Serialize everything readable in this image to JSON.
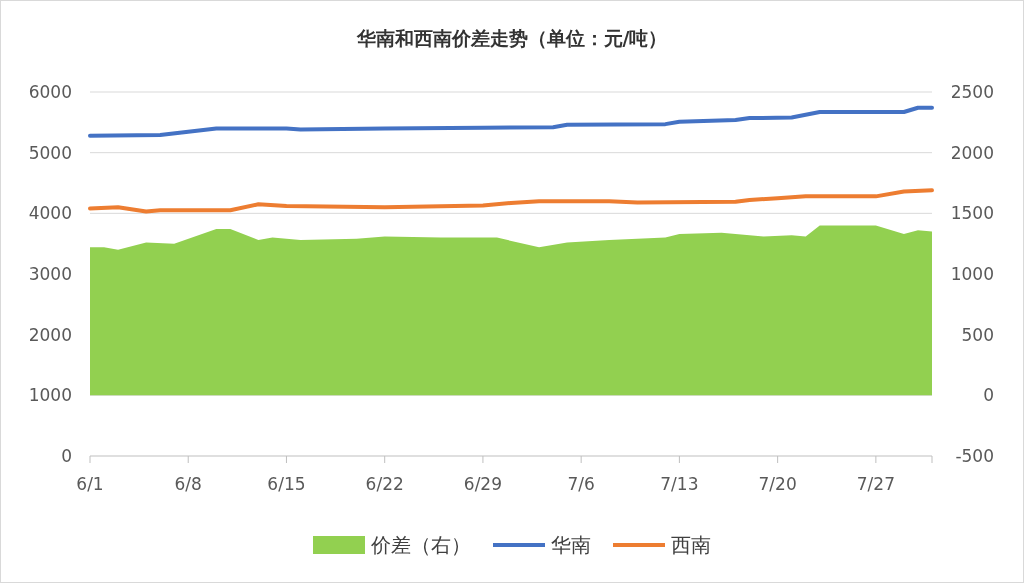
{
  "chart_data": {
    "type": "line",
    "title": "华南和西南价差走势（单位：元/吨）",
    "series": [
      {
        "name": "价差（右）",
        "type": "area",
        "axis": "y2",
        "color": "#92d050",
        "x": [
          "--06-01",
          "--06-02",
          "--06-03",
          "--06-05",
          "--06-07",
          "--06-10",
          "--06-11",
          "--06-13",
          "--06-14",
          "--06-16",
          "--06-20",
          "--06-22",
          "--06-26",
          "--06-30",
          "--07-03",
          "--07-05",
          "--07-08",
          "--07-12",
          "--07-13",
          "--07-16",
          "--07-19",
          "--07-21",
          "--07-22",
          "--07-23",
          "--07-27",
          "--07-29",
          "--07-30",
          "--07-31"
        ],
        "values": [
          1220,
          1220,
          1200,
          1260,
          1250,
          1370,
          1370,
          1280,
          1300,
          1280,
          1290,
          1310,
          1300,
          1300,
          1220,
          1260,
          1280,
          1300,
          1330,
          1340,
          1310,
          1320,
          1310,
          1400,
          1400,
          1330,
          1360,
          1350
        ]
      },
      {
        "name": "华南",
        "color": "#4472c4",
        "x": [
          "--06-01",
          "--06-06",
          "--06-10",
          "--06-15",
          "--06-16",
          "--06-22",
          "--06-29",
          "--07-04",
          "--07-05",
          "--07-12",
          "--07-13",
          "--07-17",
          "--07-18",
          "--07-21",
          "--07-23",
          "--07-29",
          "--07-30",
          "--07-31"
        ],
        "values": [
          5280,
          5290,
          5400,
          5400,
          5380,
          5400,
          5410,
          5420,
          5460,
          5470,
          5510,
          5540,
          5570,
          5580,
          5670,
          5670,
          5740,
          5740
        ]
      },
      {
        "name": "西南",
        "color": "#ed7d31",
        "x": [
          "--06-01",
          "--06-03",
          "--06-05",
          "--06-06",
          "--06-11",
          "--06-13",
          "--06-15",
          "--06-22",
          "--06-29",
          "--07-01",
          "--07-03",
          "--07-08",
          "--07-10",
          "--07-17",
          "--07-18",
          "--07-20",
          "--07-22",
          "--07-27",
          "--07-29",
          "--07-31"
        ],
        "values": [
          4080,
          4100,
          4030,
          4050,
          4050,
          4150,
          4120,
          4100,
          4130,
          4170,
          4200,
          4200,
          4180,
          4190,
          4220,
          4250,
          4280,
          4280,
          4360,
          4380
        ]
      }
    ],
    "xlim": [
      "--06-01",
      "--07-31"
    ],
    "xticks": [
      {
        "value": "--06-01",
        "label": "6/1"
      },
      {
        "value": "--06-08",
        "label": "6/8"
      },
      {
        "value": "--06-15",
        "label": "6/15"
      },
      {
        "value": "--06-22",
        "label": "6/22"
      },
      {
        "value": "--06-29",
        "label": "6/29"
      },
      {
        "value": "--07-06",
        "label": "7/6"
      },
      {
        "value": "--07-13",
        "label": "7/13"
      },
      {
        "value": "--07-20",
        "label": "7/20"
      },
      {
        "value": "--07-27",
        "label": "7/27"
      }
    ],
    "ylim": [
      0,
      6000
    ],
    "yticks": [
      0,
      1000,
      2000,
      3000,
      4000,
      5000,
      6000
    ],
    "y2lim": [
      -500,
      2500
    ],
    "y2ticks": [
      -500,
      0,
      500,
      1000,
      1500,
      2000,
      2500
    ],
    "grid": "y",
    "legend": "bottom"
  }
}
